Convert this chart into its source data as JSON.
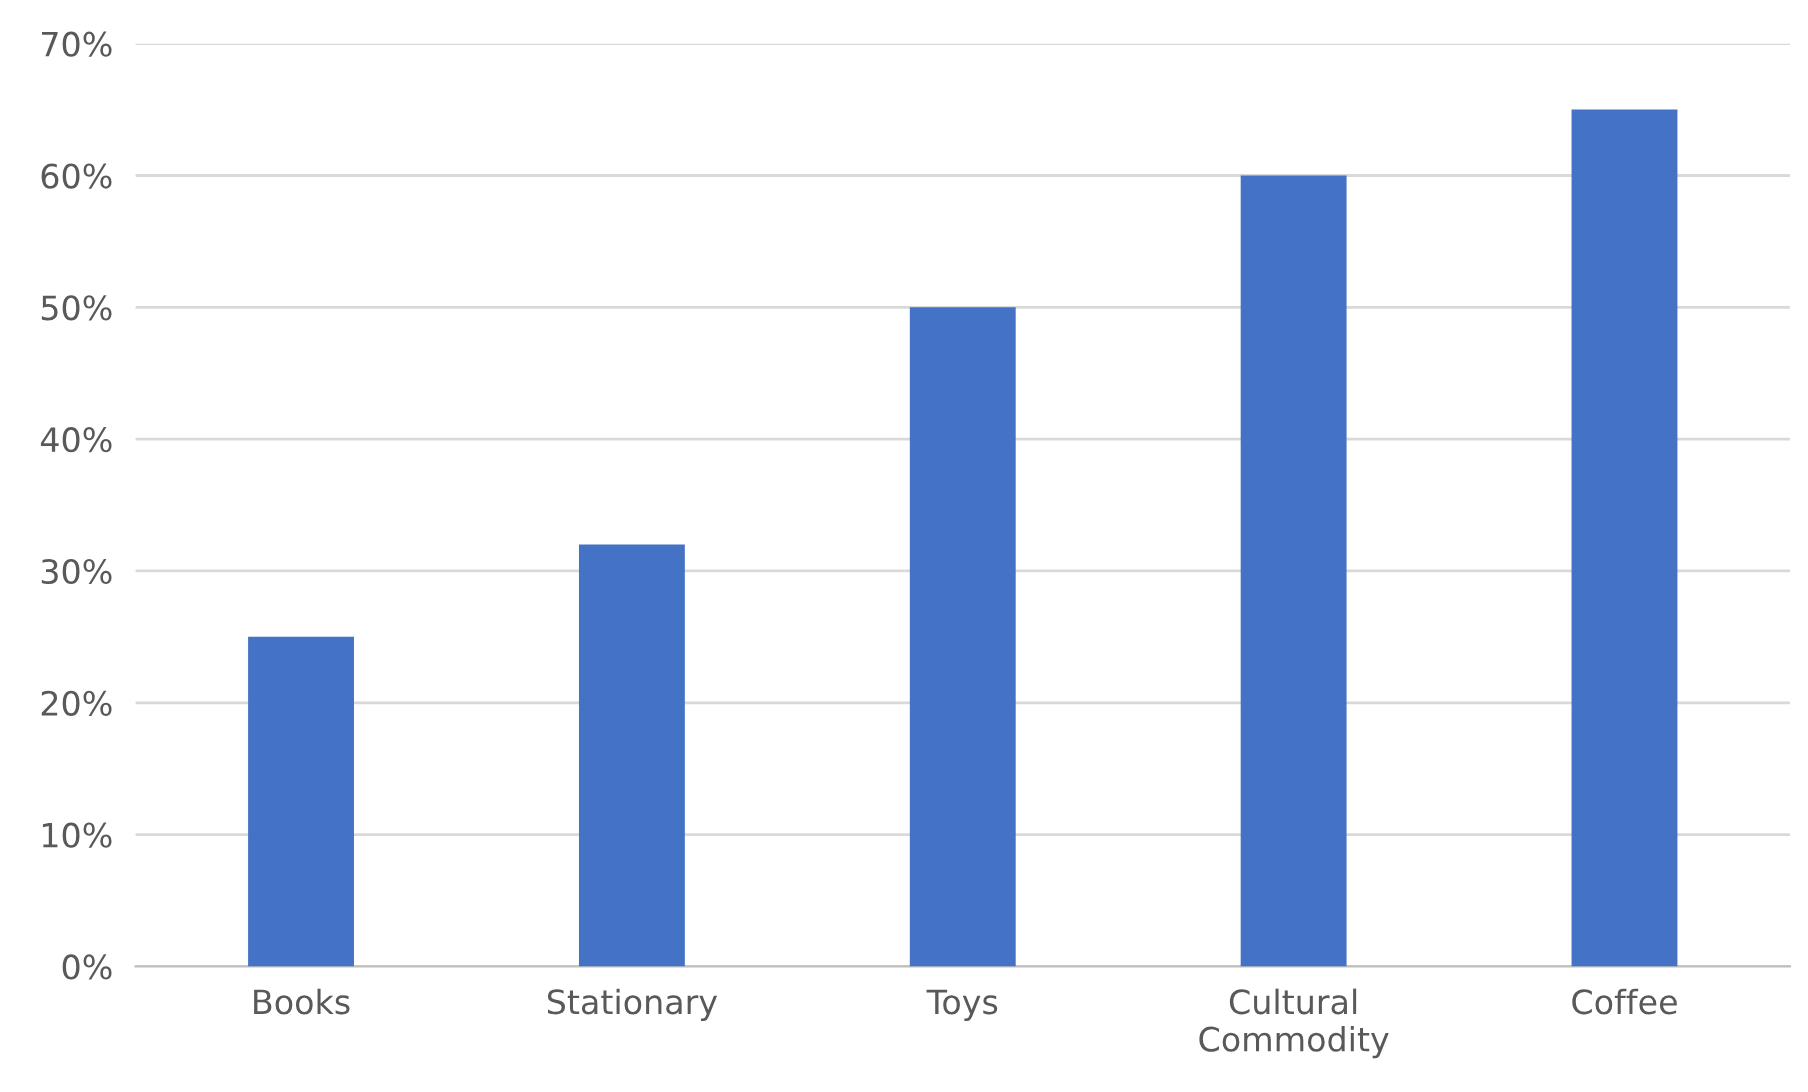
{
  "chart_data": {
    "type": "bar",
    "categories": [
      "Books",
      "Stationary",
      "Toys",
      "Cultural\nCommodity",
      "Coffee"
    ],
    "values": [
      25,
      32,
      50,
      60,
      65
    ],
    "color": "#4472c4",
    "ylim": [
      0,
      70
    ],
    "yticks": [
      {
        "value": 0,
        "label": "0%"
      },
      {
        "value": 10,
        "label": "10%"
      },
      {
        "value": 20,
        "label": "20%"
      },
      {
        "value": 30,
        "label": "30%"
      },
      {
        "value": 40,
        "label": "40%"
      },
      {
        "value": 50,
        "label": "50%"
      },
      {
        "value": 60,
        "label": "60%"
      },
      {
        "value": 70,
        "label": "70%"
      }
    ],
    "grid": "y"
  }
}
